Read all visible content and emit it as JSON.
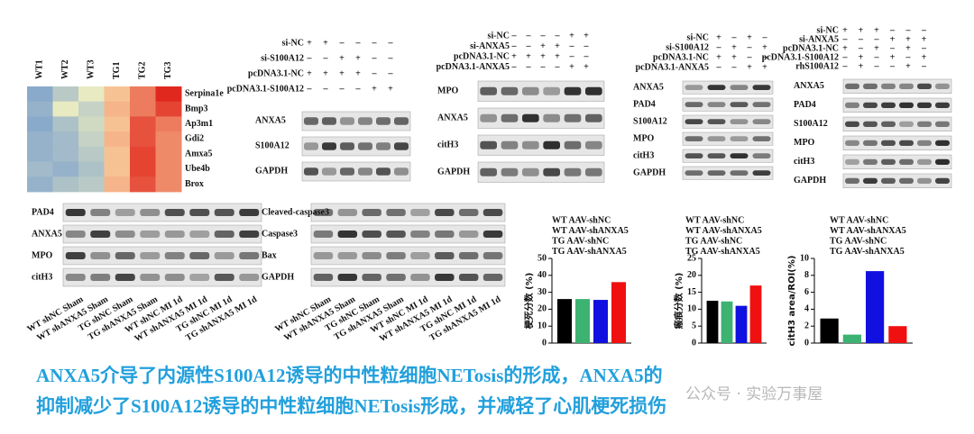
{
  "heatmap": {
    "columns": [
      "WT1",
      "WT2",
      "WT3",
      "TG1",
      "TG2",
      "TG3"
    ],
    "genes": [
      "Serpina1e",
      "Bmp3",
      "Ap3m1",
      "Gdi2",
      "Amxa5",
      "Ube4b",
      "Brox"
    ],
    "values": [
      [
        -1.0,
        -0.6,
        -0.2,
        0.4,
        0.9,
        1.5
      ],
      [
        -0.9,
        -0.2,
        -0.5,
        0.5,
        0.9,
        1.3
      ],
      [
        -1.0,
        -0.7,
        -0.4,
        0.4,
        1.2,
        0.9
      ],
      [
        -0.9,
        -0.8,
        -0.5,
        0.5,
        1.2,
        0.8
      ],
      [
        -0.9,
        -0.8,
        -0.6,
        0.4,
        1.3,
        0.8
      ],
      [
        -0.8,
        -0.9,
        -0.7,
        0.4,
        1.3,
        0.8
      ],
      [
        -0.9,
        -0.7,
        -0.6,
        0.5,
        1.2,
        0.8
      ]
    ]
  },
  "blots": [
    {
      "conditions": [
        {
          "label": "si-NC",
          "signs": [
            "+",
            "+",
            "–",
            "–",
            "–",
            "–"
          ]
        },
        {
          "label": "si-S100A12",
          "signs": [
            "–",
            "–",
            "+",
            "+",
            "–",
            "–"
          ]
        },
        {
          "label": "pcDNA3.1-NC",
          "signs": [
            "+",
            "+",
            "+",
            "+",
            "–",
            "–"
          ]
        },
        {
          "label": "pcDNA3.1-S100A12",
          "signs": [
            "–",
            "–",
            "–",
            "–",
            "+",
            "+"
          ]
        }
      ],
      "bands": [
        "ANXA5",
        "S100A12",
        "GAPDH"
      ]
    },
    {
      "conditions": [
        {
          "label": "si-NC",
          "signs": [
            "–",
            "–",
            "–",
            "–",
            "+",
            "+"
          ]
        },
        {
          "label": "si-ANXA5",
          "signs": [
            "–",
            "–",
            "+",
            "+",
            "–",
            "–"
          ]
        },
        {
          "label": "pcDNA3.1-NC",
          "signs": [
            "+",
            "+",
            "+",
            "+",
            "–",
            "–"
          ]
        },
        {
          "label": "pcDNA3.1-ANXA5",
          "signs": [
            "–",
            "–",
            "–",
            "–",
            "+",
            "+"
          ]
        }
      ],
      "bands": [
        "MPO",
        "ANXA5",
        "citH3",
        "GAPDH"
      ]
    },
    {
      "conditions": [
        {
          "label": "si-NC",
          "signs": [
            "+",
            "–",
            "+",
            "–"
          ]
        },
        {
          "label": "si-S100A12",
          "signs": [
            "–",
            "+",
            "–",
            "+"
          ]
        },
        {
          "label": "pcDNA3.1-NC",
          "signs": [
            "+",
            "+",
            "–",
            "–"
          ]
        },
        {
          "label": "pcDNA3.1-ANXA5",
          "signs": [
            "–",
            "–",
            "+",
            "+"
          ]
        }
      ],
      "bands": [
        "ANXA5",
        "PAD4",
        "S100A12",
        "MPO",
        "citH3",
        "GAPDH"
      ]
    },
    {
      "conditions": [
        {
          "label": "si-NC",
          "signs": [
            "+",
            "+",
            "+",
            "–",
            "–",
            "–"
          ]
        },
        {
          "label": "si-ANXA5",
          "signs": [
            "–",
            "–",
            "–",
            "+",
            "+",
            "+"
          ]
        },
        {
          "label": "pcDNA3.1-NC",
          "signs": [
            "+",
            "–",
            "+",
            "–",
            "+",
            "–"
          ]
        },
        {
          "label": "pcDNA3.1-S100A12",
          "signs": [
            "–",
            "+",
            "–",
            "+",
            "–",
            "+"
          ]
        },
        {
          "label": "rhS100A12",
          "signs": [
            "–",
            "+",
            "–",
            "–",
            "+",
            "–"
          ]
        }
      ],
      "bands": [
        "ANXA5",
        "PAD4",
        "S100A12",
        "MPO",
        "citH3",
        "GAPDH"
      ]
    }
  ],
  "tissue_blots": {
    "lanes": [
      "WT shNC Sham",
      "WT shANXA5 Sham",
      "TG shNC Sham",
      "TG shANXA5 Sham",
      "WT shNC MI 1d",
      "WT shANXA5 MI 1d",
      "TG shNC MI 1d",
      "TG shANXA5 MI 1d"
    ],
    "panels": [
      {
        "bands": [
          "PAD4",
          "ANXA5",
          "MPO",
          "citH3"
        ]
      },
      {
        "bands": [
          "Cleaved-caspase3",
          "Caspase3",
          "Bax",
          "GAPDH"
        ]
      }
    ]
  },
  "chart_data": [
    {
      "type": "bar",
      "ylabel": "梗死分数 (%)",
      "categories": [
        null
      ],
      "series": [
        {
          "name": "WT AAV-shNC",
          "color": "#000000",
          "values": [
            26
          ]
        },
        {
          "name": "WT AAV-shANXA5",
          "color": "#3cb371",
          "values": [
            26
          ]
        },
        {
          "name": "TG AAV-shNC",
          "color": "#1010e0",
          "values": [
            25.5
          ]
        },
        {
          "name": "TG AAV-shANXA5",
          "color": "#f01010",
          "values": [
            36
          ]
        }
      ],
      "ylim": [
        0,
        50
      ],
      "yticks": [
        0,
        10,
        20,
        30,
        40,
        50
      ]
    },
    {
      "type": "bar",
      "ylabel": "瘢痕分数 (%)",
      "categories": [
        null
      ],
      "series": [
        {
          "name": "WT AAV-shNC",
          "color": "#000000",
          "values": [
            12.5
          ]
        },
        {
          "name": "WT AAV-shANXA5",
          "color": "#3cb371",
          "values": [
            12.3
          ]
        },
        {
          "name": "TG AAV-shNC",
          "color": "#1010e0",
          "values": [
            11
          ]
        },
        {
          "name": "TG AAV-shANXA5",
          "color": "#f01010",
          "values": [
            17
          ]
        }
      ],
      "ylim": [
        0,
        25
      ],
      "yticks": [
        0,
        5,
        10,
        15,
        20,
        25
      ]
    },
    {
      "type": "bar",
      "ylabel": "citH3 area/ROI(%)",
      "categories": [
        null
      ],
      "series": [
        {
          "name": "WT AAV-shNC",
          "color": "#000000",
          "values": [
            2.9
          ]
        },
        {
          "name": "WT AAV-shANXA5",
          "color": "#3cb371",
          "values": [
            1
          ]
        },
        {
          "name": "TG AAV-shNC",
          "color": "#1010e0",
          "values": [
            8.5
          ]
        },
        {
          "name": "TG AAV-shANXA5",
          "color": "#f01010",
          "values": [
            2
          ]
        }
      ],
      "ylim": [
        0,
        10
      ],
      "yticks": [
        0,
        2,
        4,
        6,
        8,
        10
      ]
    }
  ],
  "caption": [
    "ANXA5介导了内源性S100A12诱导的中性粒细胞NETosis的形成，ANXA5的",
    "抑制减少了S100A12诱导的中性粒细胞NETosis形成，并减轻了心肌梗死损伤"
  ],
  "watermark": "公众号 · 实验万事屋"
}
